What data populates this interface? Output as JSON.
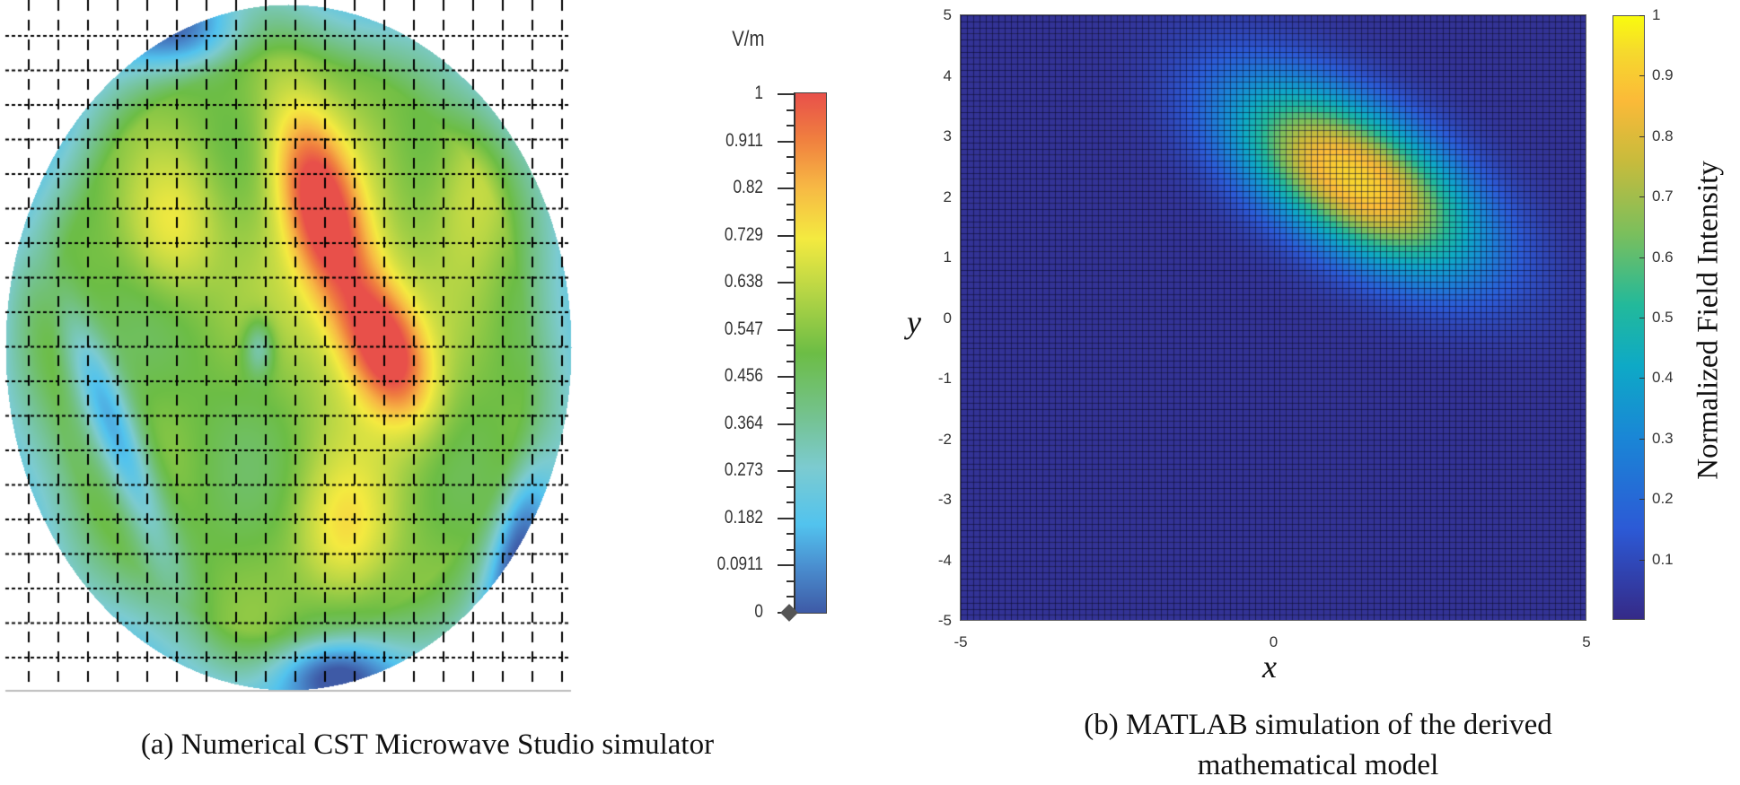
{
  "chart_data": [
    {
      "type": "heatmap",
      "panel": "a",
      "caption": "(a) Numerical CST Microwave Studio simulator",
      "colorbar": {
        "unit": "V/m",
        "ticks": [
          "1",
          "0.911",
          "0.82",
          "0.729",
          "0.638",
          "0.547",
          "0.456",
          "0.364",
          "0.273",
          "0.182",
          "0.0911",
          "0"
        ],
        "range": [
          0,
          1
        ],
        "colormap": [
          "#3e5aa6",
          "#52c3ee",
          "#7ccbd0",
          "#6cbd45",
          "#f4ea40",
          "#f0803f",
          "#e8504a"
        ]
      },
      "grid": true,
      "peak_value": 1,
      "regions": {
        "peak": "elongated red ridge right of center, tilted",
        "background": "green / cyan",
        "low": "blue streaks lower-left and bottom edge"
      }
    },
    {
      "type": "heatmap",
      "panel": "b",
      "caption_lines": [
        "(b) MATLAB simulation of the derived",
        "mathematical model"
      ],
      "xlabel": "x",
      "ylabel": "y",
      "xlim": [
        -5,
        5
      ],
      "ylim": [
        -5,
        5
      ],
      "xticks": [
        "-5",
        "0",
        "5"
      ],
      "yticks": [
        "5",
        "4",
        "3",
        "2",
        "1",
        "0",
        "-1",
        "-2",
        "-3",
        "-4",
        "-5"
      ],
      "colorbar": {
        "label": "Normalized Field Intensity",
        "ticks": [
          "1",
          "0.9",
          "0.8",
          "0.7",
          "0.6",
          "0.5",
          "0.4",
          "0.3",
          "0.2",
          "0.1"
        ],
        "range": [
          0,
          1
        ],
        "colormap": [
          "#352a87",
          "#1a86d6",
          "#22b99b",
          "#c8bb3c",
          "#f9fb0e"
        ]
      },
      "grid": true,
      "peak": {
        "x": 1.3,
        "y": 2.3,
        "value": 0.85
      },
      "background_value": 0.02
    }
  ]
}
